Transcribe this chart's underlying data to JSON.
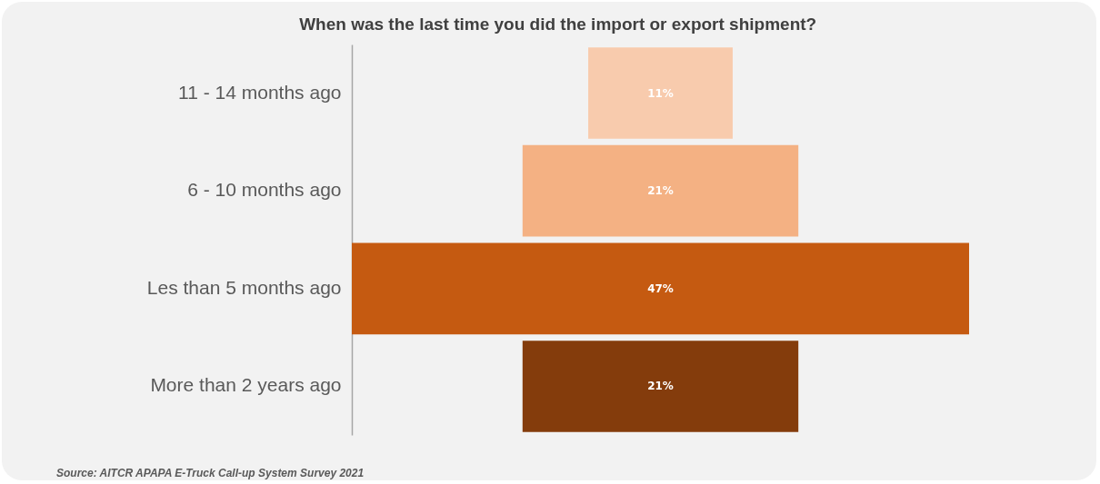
{
  "chart_data": {
    "type": "other",
    "title": "When was the last time you did the import or export shipment?",
    "categories": [
      "11 - 14 months ago",
      "6 - 10 months ago",
      "Les than 5 months ago",
      "More than 2 years ago"
    ],
    "values": [
      11,
      21,
      47,
      21
    ],
    "colors": [
      "#f8cbad",
      "#f4b183",
      "#c55a11",
      "#843c0c"
    ],
    "value_labels": [
      "11%",
      "21%",
      "47%",
      "21%"
    ],
    "annotations": [
      "Source: AITCR APAPA E-Truck Call-up System Survey 2021"
    ]
  }
}
